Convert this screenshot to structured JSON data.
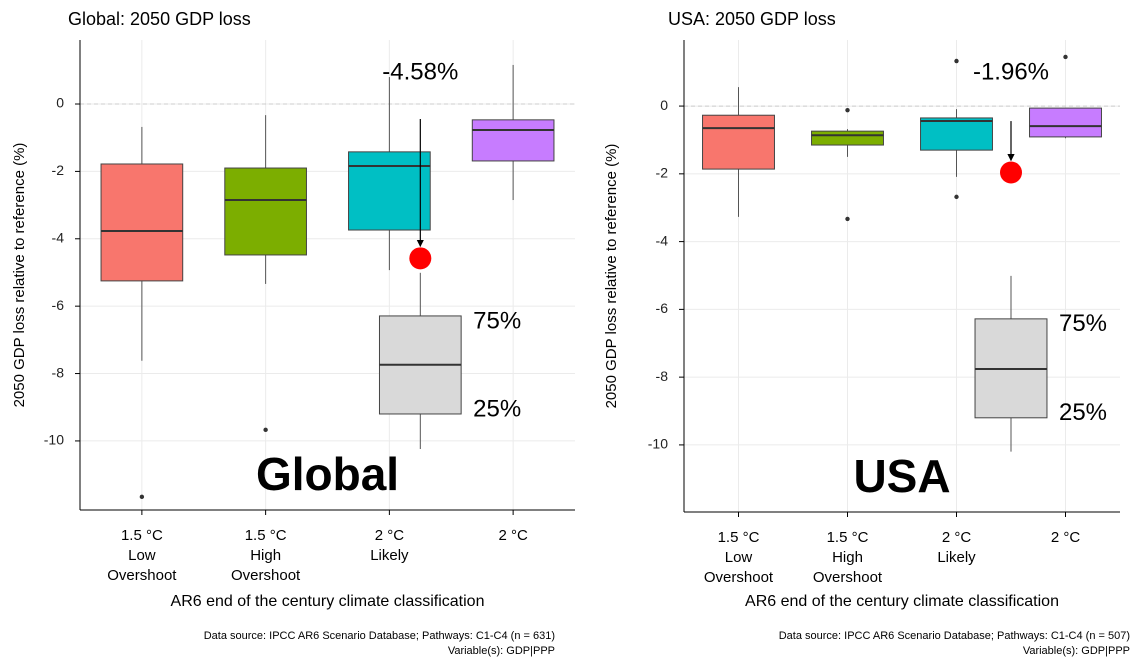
{
  "chart_data": [
    {
      "type": "box",
      "title": "Global: 2050 GDP loss",
      "ylabel": "2050 GDP loss relative to reference (%)",
      "xlabel": "AR6 end of the century climate classification",
      "categories": [
        [
          "1.5 °C",
          "Low",
          "Overshoot"
        ],
        [
          "1.5 °C",
          "High",
          "Overshoot"
        ],
        [
          "2 °C",
          "Likely"
        ],
        [
          "2 °C"
        ]
      ],
      "boxes": [
        {
          "color": "#f8766d",
          "min": -7.62,
          "q1": -5.25,
          "median": -3.77,
          "q3": -1.78,
          "max": -0.68,
          "outliers": [
            -11.66
          ]
        },
        {
          "color": "#7cae00",
          "min": -5.34,
          "q1": -4.48,
          "median": -2.85,
          "q3": -1.9,
          "max": -0.33,
          "outliers": [
            -9.67
          ]
        },
        {
          "color": "#00bfc4",
          "min": -4.93,
          "q1": -3.74,
          "median": -1.84,
          "q3": -1.42,
          "max": 0.8,
          "outliers": [
            -7.86
          ]
        },
        {
          "color": "#c77cff",
          "min": -2.85,
          "q1": -1.69,
          "median": -0.77,
          "q3": -0.47,
          "max": 1.16,
          "outliers": []
        }
      ],
      "inset_box": {
        "color": "#d9d9d9",
        "min": -10.24,
        "q1": -9.2,
        "median": -7.74,
        "q3": -6.29,
        "max": -5.01,
        "upper_label": "75%",
        "lower_label": "25%"
      },
      "highlight": {
        "value": -4.58,
        "label": "-4.58%",
        "color": "#ff0000"
      },
      "watermark": "Global",
      "ylim": [
        -12.05,
        1.9
      ],
      "yticks": [
        0,
        -2,
        -4,
        -6,
        -8,
        -10
      ],
      "grid": true,
      "reference_line": 0,
      "source": "Data source: IPCC AR6 Scenario Database; Pathways: C1-C4 (n = 631)",
      "variable": "Variable(s): GDP|PPP"
    },
    {
      "type": "box",
      "title": "USA: 2050 GDP loss",
      "ylabel": "2050 GDP loss relative to reference (%)",
      "xlabel": "AR6 end of the century climate classification",
      "categories": [
        [
          "1.5 °C",
          "Low",
          "Overshoot"
        ],
        [
          "1.5 °C",
          "High",
          "Overshoot"
        ],
        [
          "2 °C",
          "Likely"
        ],
        [
          "2 °C"
        ]
      ],
      "boxes": [
        {
          "color": "#f8766d",
          "min": -3.27,
          "q1": -1.86,
          "median": -0.65,
          "q3": -0.27,
          "max": 0.56,
          "outliers": []
        },
        {
          "color": "#7cae00",
          "min": -1.5,
          "q1": -1.15,
          "median": -0.86,
          "q3": -0.74,
          "max": -0.68,
          "outliers": [
            -0.12,
            -3.33
          ]
        },
        {
          "color": "#00bfc4",
          "min": -2.09,
          "q1": -1.3,
          "median": -0.44,
          "q3": -0.35,
          "max": -0.09,
          "outliers": [
            1.33,
            -2.68
          ]
        },
        {
          "color": "#c77cff",
          "min": -0.95,
          "q1": -0.91,
          "median": -0.59,
          "q3": -0.06,
          "max": -0.06,
          "outliers": [
            1.45
          ]
        }
      ],
      "inset_box": {
        "color": "#d9d9d9",
        "min": -10.2,
        "q1": -9.2,
        "median": -7.76,
        "q3": -6.28,
        "max": -5.01,
        "upper_label": "75%",
        "lower_label": "25%"
      },
      "highlight": {
        "value": -1.96,
        "label": "-1.96%",
        "color": "#ff0000"
      },
      "watermark": "USA",
      "ylim": [
        -11.98,
        1.95
      ],
      "yticks": [
        0,
        -2,
        -4,
        -6,
        -8,
        -10
      ],
      "grid": true,
      "reference_line": 0,
      "source": "Data source: IPCC AR6 Scenario Database; Pathways: C1-C4 (n = 507)",
      "variable": "Variable(s): GDP|PPP"
    }
  ]
}
